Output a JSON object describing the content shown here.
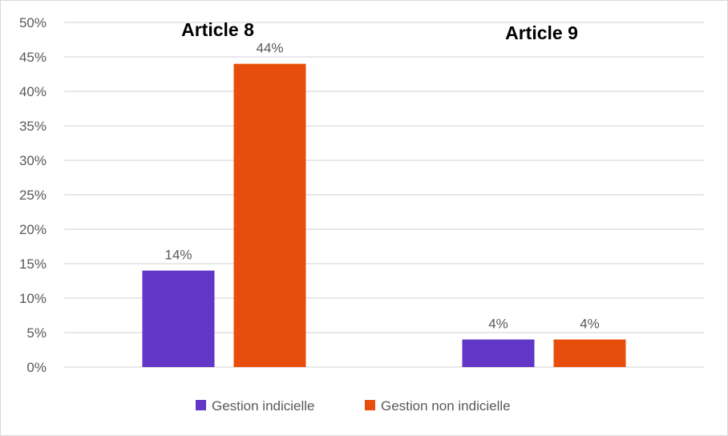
{
  "chart_data": {
    "type": "bar",
    "categories": [
      "Article 8",
      "Article 9"
    ],
    "series": [
      {
        "name": "Gestion indicielle",
        "values": [
          14,
          4
        ],
        "labels": [
          "14%",
          "4%"
        ],
        "color": "#6236C6"
      },
      {
        "name": "Gestion non indicielle",
        "values": [
          44,
          4
        ],
        "labels": [
          "44%",
          "4%"
        ],
        "color": "#E84E0B"
      }
    ],
    "ylim": [
      0,
      50
    ],
    "yticks": [
      "0%",
      "5%",
      "10%",
      "15%",
      "20%",
      "25%",
      "30%",
      "35%",
      "40%",
      "45%",
      "50%"
    ],
    "grid": true,
    "legend": "bottom",
    "gridline_color": "#d9d9d9"
  }
}
